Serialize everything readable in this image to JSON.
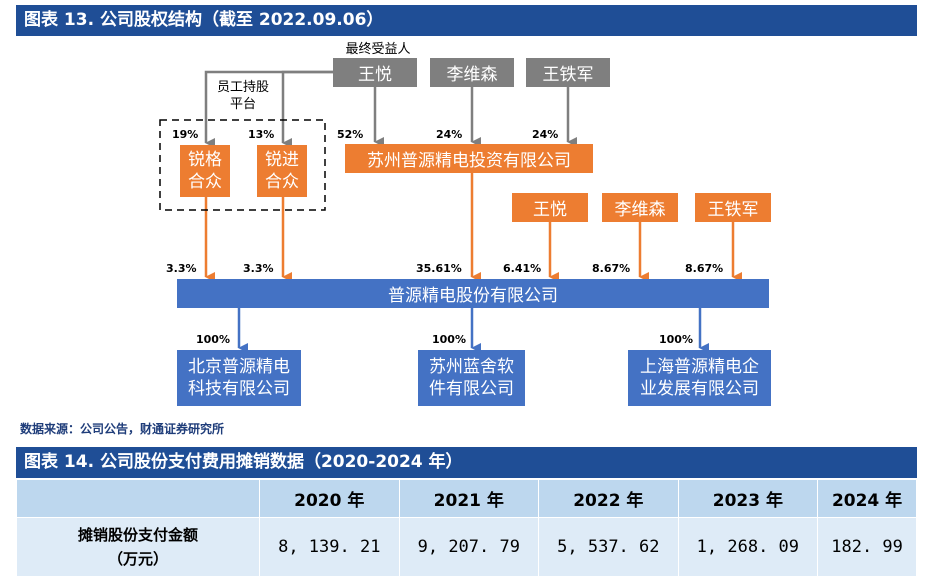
{
  "figure13": {
    "title": "图表 13. 公司股权结构（截至 2022.09.06）",
    "ultimate_beneficiary_label": "最终受益人",
    "employee_platform_label": "员工持股\n平台",
    "top_owners": [
      "王悦",
      "李维森",
      "王铁军"
    ],
    "platforms": [
      "锐格\n合众",
      "锐进\n合众"
    ],
    "investment_company": "苏州普源精电投资有限公司",
    "direct_owners": [
      "王悦",
      "李维森",
      "王铁军"
    ],
    "company": "普源精电股份有限公司",
    "subsidiaries": [
      "北京普源精电\n科技有限公司",
      "苏州蓝舍软\n件有限公司",
      "上海普源精电企\n业发展有限公司"
    ],
    "pct_to_platforms": [
      "19%",
      "13%"
    ],
    "pct_to_investment": [
      "52%",
      "24%",
      "24%"
    ],
    "pct_to_company": [
      "3.3%",
      "3.3%",
      "35.61%",
      "6.41%",
      "8.67%",
      "8.67%"
    ],
    "pct_subsidiaries": [
      "100%",
      "100%",
      "100%"
    ],
    "source": "数据来源：公司公告，财通证券研究所",
    "colors": {
      "gray": "#7f7f7f",
      "orange": "#ed7d31",
      "blue": "#4472c4",
      "title_bg": "#1f4e96"
    }
  },
  "figure14": {
    "title": "图表 14. 公司股份支付费用摊销数据（2020-2024 年）",
    "columns": [
      "2020 年",
      "2021 年",
      "2022 年",
      "2023 年",
      "2024 年"
    ],
    "row_label": "摊销股份支付金额\n（万元）",
    "values": [
      "8, 139. 21",
      "9, 207. 79",
      "5, 537. 62",
      "1, 268. 09",
      "182. 99"
    ]
  }
}
